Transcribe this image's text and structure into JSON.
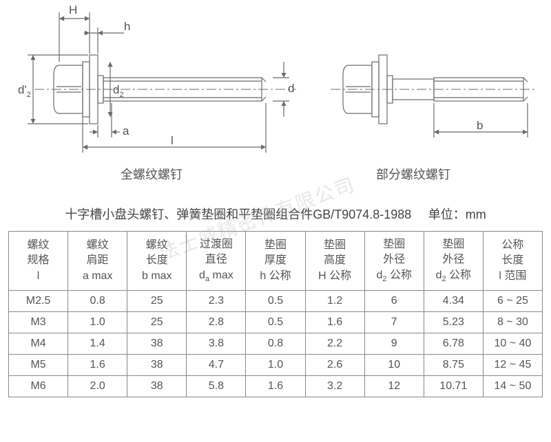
{
  "diagram": {
    "left_caption": "全螺纹螺钉",
    "right_caption": "部分螺纹螺钉",
    "labels": {
      "H": "H",
      "h": "h",
      "d2prime": "d'",
      "d2prime_sub": "2",
      "d2": "d",
      "d2_sub": "2",
      "d": "d",
      "a": "a",
      "l": "l",
      "b": "b"
    },
    "colors": {
      "line": "#6a6a6a",
      "dashdot": "#888888",
      "text": "#555555",
      "bg": "#ffffff"
    },
    "stroke_width": 1.2
  },
  "title": "十字槽小盘头螺钉、弹簧垫圈和平垫圈组合件GB/T9074.8-1988",
  "unit_label": "单位：mm",
  "watermark": "法士威精密件有限公司",
  "table": {
    "columns": [
      {
        "line1": "螺纹",
        "line2": "规格",
        "line3": "l"
      },
      {
        "line1": "螺纹",
        "line2": "肩距",
        "line3": "a max"
      },
      {
        "line1": "螺纹",
        "line2": "长度",
        "line3": "b max"
      },
      {
        "line1": "过渡圈",
        "line2": "直径",
        "line3": "d<sub>a</sub> max"
      },
      {
        "line1": "垫圈",
        "line2": "厚度",
        "line3": "h 公称"
      },
      {
        "line1": "垫圈",
        "line2": "高度",
        "line3": "H 公称"
      },
      {
        "line1": "垫圈",
        "line2": "外径",
        "line3": "d<sub>2</sub> 公称"
      },
      {
        "line1": "垫圈",
        "line2": "外径",
        "line3": "d<sub>2</sub> 公称"
      },
      {
        "line1": "公称",
        "line2": "长度",
        "line3": "l 范围"
      }
    ],
    "rows": [
      [
        "M2.5",
        "0.8",
        "25",
        "2.3",
        "0.5",
        "1.2",
        "6",
        "4.34",
        "6 ~ 25"
      ],
      [
        "M3",
        "1.0",
        "25",
        "2.8",
        "0.5",
        "1.6",
        "7",
        "5.23",
        "8 ~ 30"
      ],
      [
        "M4",
        "1.4",
        "38",
        "3.8",
        "0.8",
        "2.2",
        "9",
        "6.78",
        "10 ~ 40"
      ],
      [
        "M5",
        "1.6",
        "38",
        "4.7",
        "1.0",
        "2.6",
        "10",
        "8.75",
        "12 ~ 45"
      ],
      [
        "M6",
        "2.0",
        "38",
        "5.8",
        "1.6",
        "3.2",
        "12",
        "10.71",
        "14 ~ 50"
      ]
    ]
  }
}
